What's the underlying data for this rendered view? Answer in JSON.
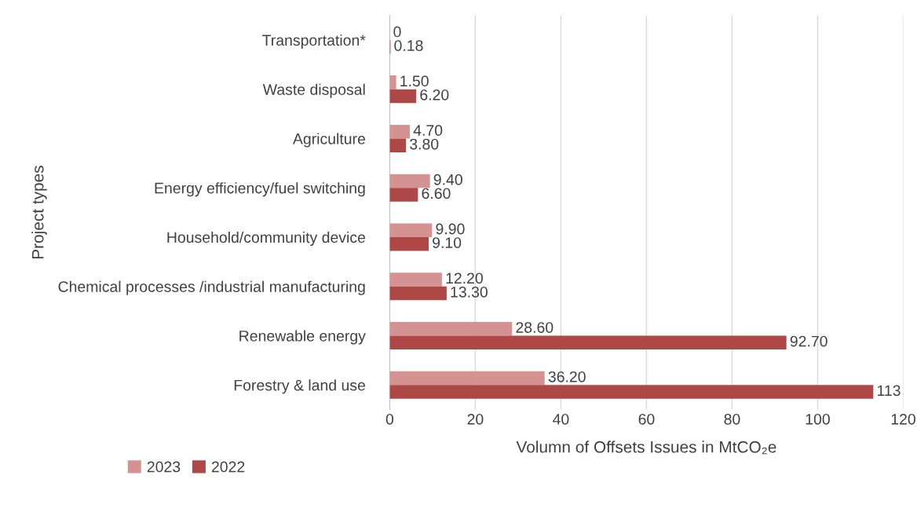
{
  "chart_data": {
    "type": "bar",
    "orientation": "horizontal",
    "categories": [
      "Transportation*",
      "Waste disposal",
      "Agriculture",
      "Energy efficiency/fuel switching",
      "Household/community device",
      "Chemical processes /industrial manufacturing",
      "Renewable energy",
      "Forestry & land use"
    ],
    "series": [
      {
        "name": "2023",
        "color": "#d49392",
        "values": [
          0,
          1.5,
          4.7,
          9.4,
          9.9,
          12.2,
          28.6,
          36.2
        ],
        "value_labels": [
          "0",
          "1.50",
          "4.70",
          "9.40",
          "9.90",
          "12.20",
          "28.60",
          "36.20"
        ]
      },
      {
        "name": "2022",
        "color": "#ae4846",
        "values": [
          0.18,
          6.2,
          3.8,
          6.6,
          9.1,
          13.3,
          92.7,
          113
        ],
        "value_labels": [
          "0.18",
          "6.20",
          "3.80",
          "6.60",
          "9.10",
          "13.30",
          "92.70",
          "113"
        ]
      }
    ],
    "xlabel": "Volumn of Offsets Issues in MtCO₂e",
    "ylabel": "Project types",
    "xlim": [
      0,
      120
    ],
    "xticks": [
      0,
      20,
      40,
      60,
      80,
      100,
      120
    ],
    "grid": "x",
    "legend": "bottom left"
  }
}
